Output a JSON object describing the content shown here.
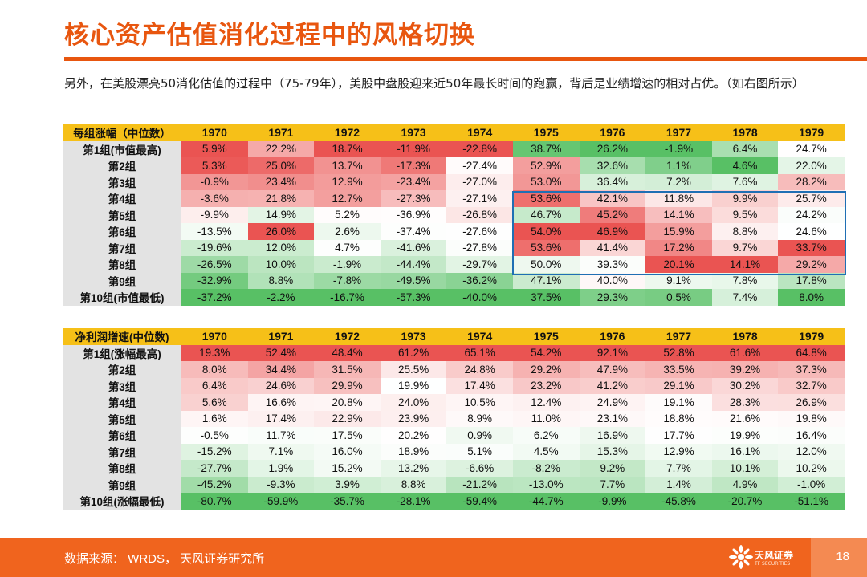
{
  "page": {
    "title": "核心资产估值消化过程中的风格切换",
    "subtitle": "另外，在美股漂亮50消化估值的过程中（75-79年），美股中盘股迎来近50年最长时间的跑赢，背后是业绩增速的相对占优。（如右图所示）",
    "footer_source": "数据来源： WRDS， 天风证券研究所",
    "page_number": "18",
    "logo_name": "天风证券",
    "logo_sub": "TF SECURITIES"
  },
  "colors": {
    "accent": "#e8560f",
    "header": "#f6c018",
    "label_bg": "#e3e3e3",
    "highlight_box": "#1f6fb4",
    "positive": "#e8413f",
    "negative": "#3ab54a"
  },
  "chart_data": [
    {
      "type": "table",
      "corner": "每组涨幅（中位数）",
      "years": [
        "1970",
        "1971",
        "1972",
        "1973",
        "1974",
        "1975",
        "1976",
        "1977",
        "1978",
        "1979"
      ],
      "rows": [
        {
          "label": "第1组(市值最高)",
          "values": [
            "5.9%",
            "22.2%",
            "18.7%",
            "-11.9%",
            "-22.8%",
            "38.7%",
            "26.2%",
            "-1.9%",
            "6.4%",
            "24.7%"
          ]
        },
        {
          "label": "第2组",
          "values": [
            "5.3%",
            "25.0%",
            "13.7%",
            "-17.3%",
            "-27.4%",
            "52.9%",
            "32.6%",
            "1.1%",
            "4.6%",
            "22.0%"
          ]
        },
        {
          "label": "第3组",
          "values": [
            "-0.9%",
            "23.4%",
            "12.9%",
            "-23.4%",
            "-27.0%",
            "53.0%",
            "36.4%",
            "7.2%",
            "7.6%",
            "28.2%"
          ]
        },
        {
          "label": "第4组",
          "values": [
            "-3.6%",
            "21.8%",
            "12.7%",
            "-27.3%",
            "-27.1%",
            "53.6%",
            "42.1%",
            "11.8%",
            "9.9%",
            "25.7%"
          ]
        },
        {
          "label": "第5组",
          "values": [
            "-9.9%",
            "14.9%",
            "5.2%",
            "-36.9%",
            "-26.8%",
            "46.7%",
            "45.2%",
            "14.1%",
            "9.5%",
            "24.2%"
          ]
        },
        {
          "label": "第6组",
          "values": [
            "-13.5%",
            "26.0%",
            "2.6%",
            "-37.4%",
            "-27.6%",
            "54.0%",
            "46.9%",
            "15.9%",
            "8.8%",
            "24.6%"
          ]
        },
        {
          "label": "第7组",
          "values": [
            "-19.6%",
            "12.0%",
            "4.7%",
            "-41.6%",
            "-27.8%",
            "53.6%",
            "41.4%",
            "17.2%",
            "9.7%",
            "33.7%"
          ]
        },
        {
          "label": "第8组",
          "values": [
            "-26.5%",
            "10.0%",
            "-1.9%",
            "-44.4%",
            "-29.7%",
            "50.0%",
            "39.3%",
            "20.1%",
            "14.1%",
            "29.2%"
          ]
        },
        {
          "label": "第9组",
          "values": [
            "-32.9%",
            "8.8%",
            "-7.8%",
            "-49.5%",
            "-36.2%",
            "47.1%",
            "40.0%",
            "9.1%",
            "7.8%",
            "17.8%"
          ]
        },
        {
          "label": "第10组(市值最低)",
          "values": [
            "-37.2%",
            "-2.2%",
            "-16.7%",
            "-57.3%",
            "-40.0%",
            "37.5%",
            "29.3%",
            "0.5%",
            "7.4%",
            "8.0%"
          ]
        }
      ]
    },
    {
      "type": "table",
      "corner": "净利润增速(中位数)",
      "years": [
        "1970",
        "1971",
        "1972",
        "1973",
        "1974",
        "1975",
        "1976",
        "1977",
        "1978",
        "1979"
      ],
      "rows": [
        {
          "label": "第1组(涨幅最高)",
          "values": [
            "19.3%",
            "52.4%",
            "48.4%",
            "61.2%",
            "65.1%",
            "54.2%",
            "92.1%",
            "52.8%",
            "61.6%",
            "64.8%"
          ]
        },
        {
          "label": "第2组",
          "values": [
            "8.0%",
            "34.4%",
            "31.5%",
            "25.5%",
            "24.8%",
            "29.2%",
            "47.9%",
            "33.5%",
            "39.2%",
            "37.3%"
          ]
        },
        {
          "label": "第3组",
          "values": [
            "6.4%",
            "24.6%",
            "29.9%",
            "19.9%",
            "17.4%",
            "23.2%",
            "41.2%",
            "29.1%",
            "30.2%",
            "32.7%"
          ]
        },
        {
          "label": "第4组",
          "values": [
            "5.6%",
            "16.6%",
            "20.8%",
            "24.0%",
            "10.5%",
            "12.4%",
            "24.9%",
            "19.1%",
            "28.3%",
            "26.9%"
          ]
        },
        {
          "label": "第5组",
          "values": [
            "1.6%",
            "17.4%",
            "22.9%",
            "23.9%",
            "8.9%",
            "11.0%",
            "23.1%",
            "18.8%",
            "21.6%",
            "19.8%"
          ]
        },
        {
          "label": "第6组",
          "values": [
            "-0.5%",
            "11.7%",
            "17.5%",
            "20.2%",
            "0.9%",
            "6.2%",
            "16.9%",
            "17.7%",
            "19.9%",
            "16.4%"
          ]
        },
        {
          "label": "第7组",
          "values": [
            "-15.2%",
            "7.1%",
            "16.0%",
            "18.9%",
            "5.1%",
            "4.5%",
            "15.3%",
            "12.9%",
            "16.1%",
            "12.0%"
          ]
        },
        {
          "label": "第8组",
          "values": [
            "-27.7%",
            "1.9%",
            "15.2%",
            "13.2%",
            "-6.6%",
            "-8.2%",
            "9.2%",
            "7.7%",
            "10.1%",
            "10.2%"
          ]
        },
        {
          "label": "第9组",
          "values": [
            "-45.2%",
            "-9.3%",
            "3.9%",
            "8.8%",
            "-21.2%",
            "-13.0%",
            "7.7%",
            "1.4%",
            "4.9%",
            "-1.0%"
          ]
        },
        {
          "label": "第10组(涨幅最低)",
          "values": [
            "-80.7%",
            "-59.9%",
            "-35.7%",
            "-28.1%",
            "-59.4%",
            "-44.7%",
            "-9.9%",
            "-45.8%",
            "-20.7%",
            "-51.1%"
          ]
        }
      ]
    }
  ]
}
